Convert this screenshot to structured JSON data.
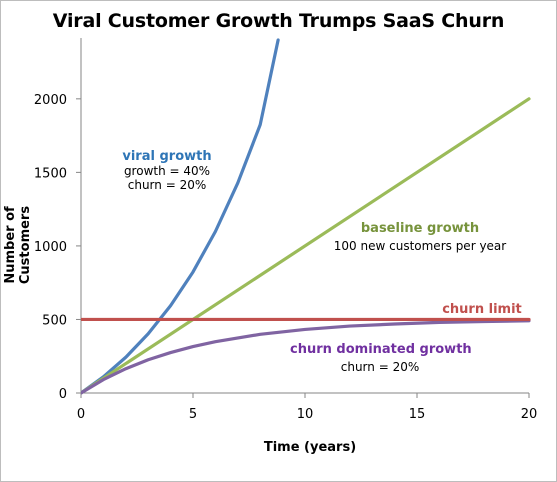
{
  "chart_data": {
    "type": "line",
    "title": "Viral Customer Growth Trumps SaaS Churn",
    "xlabel": "Time (years)",
    "ylabel": "Number of Customers",
    "xlim": [
      0,
      20
    ],
    "ylim": [
      0,
      2400
    ],
    "x_ticks": [
      0,
      5,
      10,
      15,
      20
    ],
    "y_ticks": [
      0,
      500,
      1000,
      1500,
      2000
    ],
    "grid": false,
    "series": [
      {
        "name": "viral growth",
        "color": "#4f81bd",
        "x": [
          0,
          1,
          2,
          3,
          4,
          5,
          6,
          7,
          8,
          8.8
        ],
        "y": [
          0,
          110,
          243,
          403,
          594,
          823,
          1098,
          1428,
          1824,
          2400
        ]
      },
      {
        "name": "baseline growth",
        "color": "#9bbb59",
        "x": [
          0,
          20
        ],
        "y": [
          0,
          2000
        ]
      },
      {
        "name": "churn dominated growth",
        "color": "#8064a2",
        "x": [
          0,
          1,
          2,
          3,
          4,
          5,
          6,
          8,
          10,
          12,
          14,
          16,
          18,
          20
        ],
        "y": [
          0,
          91,
          165,
          226,
          275,
          316,
          349,
          399,
          432,
          455,
          469,
          480,
          486,
          491
        ]
      },
      {
        "name": "churn limit",
        "color": "#c0504d",
        "x": [
          0,
          20
        ],
        "y": [
          500,
          500
        ]
      }
    ],
    "annotations": [
      {
        "id": "viral",
        "title": "viral growth",
        "lines": [
          "growth = 40%",
          "churn = 20%"
        ],
        "color": "#2e75b6"
      },
      {
        "id": "baseline",
        "title": "baseline growth",
        "lines": [
          "100 new customers per year"
        ],
        "color": "#77933c"
      },
      {
        "id": "churn-limit",
        "title": "churn limit",
        "lines": [],
        "color": "#c0504d"
      },
      {
        "id": "churn-dominated",
        "title": "churn dominated growth",
        "lines": [
          "churn = 20%"
        ],
        "color": "#7030a0"
      }
    ]
  }
}
